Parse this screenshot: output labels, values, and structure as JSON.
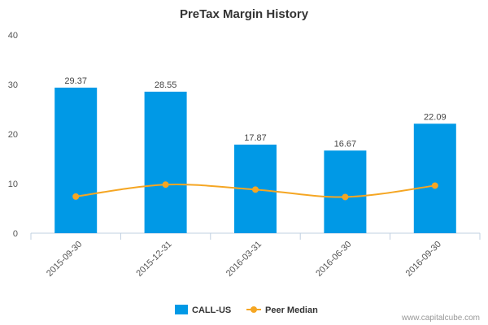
{
  "chart_data": {
    "type": "bar",
    "title": "PreTax Margin History",
    "categories": [
      "2015-09-30",
      "2015-12-31",
      "2016-03-31",
      "2016-06-30",
      "2016-09-30"
    ],
    "series": [
      {
        "name": "CALL-US",
        "type": "bar",
        "color": "#0099e6",
        "values": [
          29.37,
          28.55,
          17.87,
          16.67,
          22.09
        ]
      },
      {
        "name": "Peer Median",
        "type": "line",
        "color": "#f5a623",
        "values": [
          7.4,
          9.8,
          8.8,
          7.3,
          9.6
        ]
      }
    ],
    "data_labels": [
      "29.37",
      "28.55",
      "17.87",
      "16.67",
      "22.09"
    ],
    "ylim": [
      0,
      40
    ],
    "yticks": [
      "0",
      "10",
      "20",
      "30",
      "40"
    ],
    "grid": false,
    "legend": "bottom-center"
  },
  "credit": "www.capitalcube.com"
}
